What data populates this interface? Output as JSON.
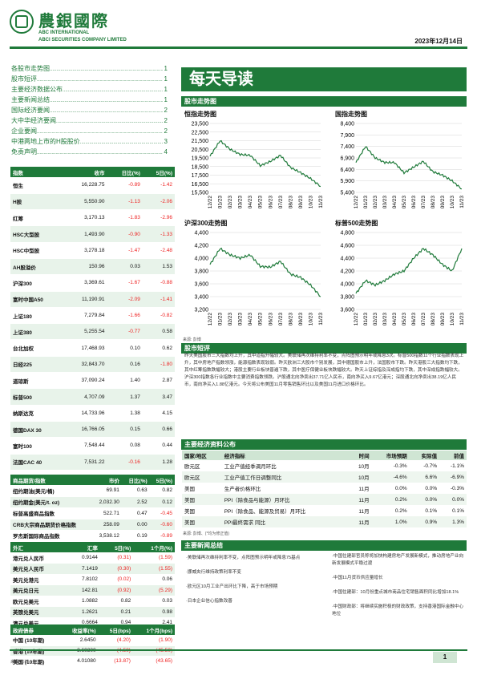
{
  "header": {
    "company_cn": "農銀國際",
    "company_en1": "ABC INTERNATIONAL",
    "company_en2": "ABCI SECURITIES COMPANY LIMITED",
    "date": "2023年12月14日",
    "brand_color": "#1f7a3a"
  },
  "toc": [
    {
      "label": "各股市走势图",
      "page": "1"
    },
    {
      "label": "股市短评",
      "page": "1"
    },
    {
      "label": "主要经济数据公布",
      "page": "1"
    },
    {
      "label": "主要新闻总结",
      "page": "1"
    },
    {
      "label": "国际经济要闻",
      "page": "2"
    },
    {
      "label": "大中华经济要闻",
      "page": "2"
    },
    {
      "label": "企业要闻",
      "page": "2"
    },
    {
      "label": "中港两地上市的H股股价",
      "page": "3"
    },
    {
      "label": "免责声明",
      "page": "4"
    }
  ],
  "indices": {
    "headers": [
      "指数",
      "收市",
      "日比(%)",
      "5日(%)"
    ],
    "rows": [
      [
        "恒生",
        "16,228.75",
        "-0.89",
        "-1.42"
      ],
      [
        "H股",
        "5,550.90",
        "-1.13",
        "-2.06"
      ],
      [
        "红筹",
        "3,170.13",
        "-1.83",
        "-2.96"
      ],
      [
        "HSC大型股",
        "1,493.90",
        "-0.90",
        "-1.33"
      ],
      [
        "HSC中型股",
        "3,278.18",
        "-1.47",
        "-2.48"
      ],
      [
        "AH股溢价",
        "150.96",
        "0.03",
        "1.53"
      ],
      [
        "沪深300",
        "3,369.61",
        "-1.67",
        "-0.88"
      ],
      [
        "富时中国A50",
        "11,190.91",
        "-2.09",
        "-1.41"
      ],
      [
        "上证180",
        "7,279.84",
        "-1.66",
        "-0.82"
      ],
      [
        "上证380",
        "5,255.54",
        "-0.77",
        "0.58"
      ],
      [
        "台北加权",
        "17,468.93",
        "0.10",
        "0.62"
      ],
      [
        "日经225",
        "32,843.70",
        "0.16",
        "-1.80"
      ],
      [
        "道琼斯",
        "37,090.24",
        "1.40",
        "2.87"
      ],
      [
        "标普500",
        "4,707.09",
        "1.37",
        "3.47"
      ],
      [
        "纳斯达克",
        "14,733.96",
        "1.38",
        "4.15"
      ],
      [
        "德国DAX 30",
        "16,766.05",
        "0.15",
        "0.66"
      ],
      [
        "富时100",
        "7,548.44",
        "0.08",
        "0.44"
      ],
      [
        "法国CAC 40",
        "7,531.22",
        "-0.16",
        "1.28"
      ]
    ]
  },
  "commodities": {
    "headers": [
      "商品期货/指数",
      "市价",
      "日比(%)",
      "5日(%)"
    ],
    "rows": [
      [
        "纽约期油(美元/桶)",
        "69.91",
        "0.63",
        "0.82"
      ],
      [
        "纽约期金(美元/t. oz)",
        "2,032.30",
        "2.52",
        "0.12"
      ],
      [
        "标普高盛商品指数",
        "522.71",
        "0.47",
        "-0.45"
      ],
      [
        "CRB大宗商品期货价格指数",
        "258.09",
        "0.00",
        "-0.60"
      ],
      [
        "罗杰斯国际商品指数",
        "3,538.12",
        "0.19",
        "-0.89"
      ]
    ]
  },
  "fx": {
    "headers": [
      "外汇",
      "汇率",
      "5日(%)",
      "1个月(%)"
    ],
    "rows": [
      [
        "港元兑人民币",
        "0.9144",
        "(0.31)",
        "(1.59)"
      ],
      [
        "美元兑人民币",
        "7.1419",
        "(0.30)",
        "(1.55)"
      ],
      [
        "美元兑港元",
        "7.8102",
        "(0.02)",
        "0.06"
      ],
      [
        "美元兑日元",
        "142.81",
        "(0.92)",
        "(5.29)"
      ],
      [
        "欧元兑美元",
        "1.0882",
        "0.82",
        "0.03"
      ],
      [
        "英镑兑美元",
        "1.2621",
        "0.21",
        "0.98"
      ],
      [
        "澳元兑美元",
        "0.6664",
        "0.94",
        "2.41"
      ]
    ]
  },
  "bonds": {
    "headers": [
      "政府债券",
      "收益率(%)",
      "5日(bps)",
      "1个月(bps)"
    ],
    "rows": [
      [
        "中国 (10年期)",
        "2.6450",
        "(4.20)",
        "(1.90)"
      ],
      [
        "香港 (10年期)",
        "3.60300",
        "(4.50)",
        "(45.50)"
      ],
      [
        "美国 (10年期)",
        "4.01080",
        "(13.87)",
        "(43.65)"
      ]
    ],
    "source": "来源: 彭博"
  },
  "right": {
    "banner": "每天导读",
    "charts_section": "股市走势图",
    "source": "来源: 彭博",
    "commentary_title": "股市短评",
    "commentary": "昨天美国股市三大指数均上升，其中道指升幅较大。美联储再次维持利率不变，点阵图预示明年或降息3次。标普500指数11个行业指数表现上升，其中房地产指数领涨，能源指数表现较弱。昨天欧洲三大股市个别发展，其中德国股市上升，法国股市下跌。昨天港股三大指数均下跌，其中红筹指数跌幅较大；港股主要行业板块普遍下跌，其中医疗保健业板块跌幅较大。昨天上证综指及深成指均下跌，其中深成指跌幅较大。沪深300指数各行业指数中主要消费指数领跌。沪股通北向净卖出37.71亿人民币，南向净买入9.67亿港元；深股通北向净卖出38.19亿人民币，南向净买入1.88亿港元。今天将公布美国11月零售销售环比以及美国11月进口价格环比。",
    "econ_title": "主要经济资料公布",
    "econ_headers": [
      "国家/地区",
      "经济指标",
      "时间",
      "市场预期",
      "实际值",
      "前值"
    ],
    "econ_rows": [
      [
        "欧元区",
        "工业产值经季调月环比",
        "10月",
        "-0.3%",
        "-0.7%",
        "-1.1%"
      ],
      [
        "欧元区",
        "工业产值工作日调整同比",
        "10月",
        "-4.6%",
        "6.6%",
        "-6.9%"
      ],
      [
        "美国",
        "生产者价格环比",
        "11月",
        "0.0%",
        "0.0%",
        "-0.3%"
      ],
      [
        "美国",
        "PPI（除食品与能源）月环比",
        "11月",
        "0.2%",
        "0.0%",
        "0.0%"
      ],
      [
        "美国",
        "PPI（除食品、能源及贸易）月环比",
        "11月",
        "0.2%",
        "0.1%",
        "0.1%"
      ],
      [
        "美国",
        "PPI最终需求 同比",
        "11月",
        "1.0%",
        "0.9%",
        "1.3%"
      ]
    ],
    "econ_source": "来源: 彭博、(*均为修正值)",
    "news_title": "主要新闻总结",
    "news_left": [
      "·美联储再次维持利率不变，点阵图预示明年或降息75基点",
      "·挪威央行维持政策利率不变",
      "·欧元区10月工业产出环比下降，高于市场预期",
      "·日本企业信心指数改善"
    ],
    "news_right": [
      "·中国住建部官员称将加快构建房地产发展新模式，推动房地产业向新发展模式平稳过渡",
      "·中国11月货币供应量增长",
      "·中国住建部：10月份重点城市商品住宅销售面积同比增加18.1%",
      "·中国财政部：将继续实施积极的财政政策，支持香港国际金融中心地位"
    ]
  },
  "chart_data": [
    {
      "type": "line",
      "title": "恒指走势图",
      "x": [
        "12/22",
        "01/23",
        "02/23",
        "03/23",
        "04/23",
        "05/23",
        "06/23",
        "07/23",
        "08/23",
        "09/23",
        "10/23",
        "11/23"
      ],
      "y": [
        19700,
        21500,
        20500,
        19900,
        19800,
        18600,
        19100,
        19800,
        18400,
        17800,
        17100,
        16200
      ],
      "yticks": [
        15500,
        16500,
        17500,
        18500,
        19500,
        20500,
        21500,
        22500,
        23500
      ],
      "ylim": [
        15500,
        23500
      ]
    },
    {
      "type": "line",
      "title": "国指走势图",
      "x": [
        "12/22",
        "01/23",
        "02/23",
        "03/23",
        "04/23",
        "05/23",
        "06/23",
        "07/23",
        "08/23",
        "09/23",
        "10/23",
        "11/23"
      ],
      "y": [
        6700,
        7400,
        6900,
        6700,
        6700,
        6250,
        6500,
        6750,
        6300,
        6150,
        5900,
        5550
      ],
      "yticks": [
        5400,
        5900,
        6400,
        6900,
        7400,
        7900,
        8400
      ],
      "ylim": [
        5400,
        8400
      ]
    },
    {
      "type": "line",
      "title": "沪深300走势图",
      "x": [
        "12/22",
        "01/23",
        "02/23",
        "03/23",
        "04/23",
        "05/23",
        "06/23",
        "07/23",
        "08/23",
        "09/23",
        "10/23",
        "11/23"
      ],
      "y": [
        3900,
        4150,
        4050,
        4000,
        4050,
        3870,
        3860,
        3950,
        3750,
        3700,
        3580,
        3400
      ],
      "yticks": [
        3200,
        3400,
        3600,
        3800,
        4000,
        4200,
        4400
      ],
      "ylim": [
        3200,
        4400
      ]
    },
    {
      "type": "line",
      "title": "标普500走势图",
      "x": [
        "12/22",
        "01/23",
        "02/23",
        "03/23",
        "04/23",
        "05/23",
        "06/23",
        "07/23",
        "08/23",
        "09/23",
        "10/23",
        "11/23"
      ],
      "y": [
        3850,
        4050,
        3980,
        4050,
        4150,
        4200,
        4400,
        4550,
        4450,
        4300,
        4200,
        4550
      ],
      "yticks": [
        3600,
        3800,
        4000,
        4200,
        4400,
        4600,
        4800
      ],
      "ylim": [
        3600,
        4800
      ]
    }
  ],
  "footer": {
    "page": "1"
  }
}
